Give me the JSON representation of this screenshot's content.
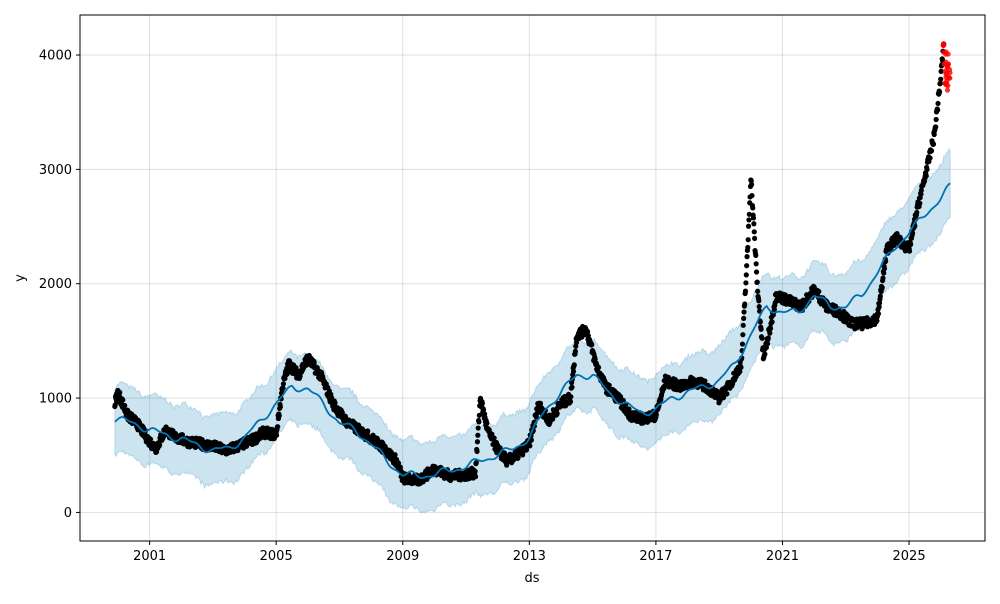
{
  "chart_data": {
    "type": "scatter",
    "title": "",
    "xlabel": "ds",
    "ylabel": "y",
    "xlim": [
      1998.8,
      2027.4
    ],
    "ylim": [
      -250,
      4350
    ],
    "grid": true,
    "xticks": [
      2001,
      2005,
      2009,
      2013,
      2017,
      2021,
      2025
    ],
    "yticks": [
      0,
      1000,
      2000,
      3000,
      4000
    ],
    "colors": {
      "observed": "#000000",
      "test": "#ff0000",
      "forecast": "#0072B2",
      "interval": "#0072B2"
    },
    "observed": [
      [
        1999.9,
        950
      ],
      [
        2000.0,
        1050
      ],
      [
        2000.3,
        850
      ],
      [
        2000.6,
        780
      ],
      [
        2001.0,
        620
      ],
      [
        2001.2,
        560
      ],
      [
        2001.5,
        720
      ],
      [
        2001.8,
        660
      ],
      [
        2002.2,
        620
      ],
      [
        2002.6,
        600
      ],
      [
        2003.0,
        580
      ],
      [
        2003.4,
        540
      ],
      [
        2003.8,
        580
      ],
      [
        2004.3,
        640
      ],
      [
        2004.6,
        700
      ],
      [
        2005.0,
        680
      ],
      [
        2005.2,
        1100
      ],
      [
        2005.4,
        1300
      ],
      [
        2005.7,
        1200
      ],
      [
        2006.0,
        1350
      ],
      [
        2006.4,
        1200
      ],
      [
        2006.8,
        950
      ],
      [
        2007.2,
        800
      ],
      [
        2007.6,
        720
      ],
      [
        2008.0,
        650
      ],
      [
        2008.4,
        560
      ],
      [
        2008.8,
        450
      ],
      [
        2009.0,
        300
      ],
      [
        2009.5,
        280
      ],
      [
        2010.0,
        380
      ],
      [
        2010.5,
        320
      ],
      [
        2011.0,
        330
      ],
      [
        2011.3,
        350
      ],
      [
        2011.45,
        1000
      ],
      [
        2011.7,
        700
      ],
      [
        2012.0,
        550
      ],
      [
        2012.3,
        450
      ],
      [
        2012.6,
        500
      ],
      [
        2013.0,
        600
      ],
      [
        2013.3,
        950
      ],
      [
        2013.6,
        800
      ],
      [
        2014.0,
        950
      ],
      [
        2014.3,
        1000
      ],
      [
        2014.5,
        1550
      ],
      [
        2014.8,
        1600
      ],
      [
        2015.1,
        1300
      ],
      [
        2015.4,
        1100
      ],
      [
        2015.8,
        1000
      ],
      [
        2016.2,
        850
      ],
      [
        2016.6,
        820
      ],
      [
        2017.0,
        850
      ],
      [
        2017.3,
        1150
      ],
      [
        2017.8,
        1100
      ],
      [
        2018.2,
        1150
      ],
      [
        2018.6,
        1100
      ],
      [
        2019.0,
        1000
      ],
      [
        2019.3,
        1100
      ],
      [
        2019.5,
        1200
      ],
      [
        2019.7,
        1300
      ],
      [
        2019.9,
        2300
      ],
      [
        2020.0,
        2950
      ],
      [
        2020.2,
        2000
      ],
      [
        2020.4,
        1350
      ],
      [
        2020.6,
        1600
      ],
      [
        2020.8,
        1900
      ],
      [
        2021.2,
        1850
      ],
      [
        2021.6,
        1800
      ],
      [
        2022.0,
        1950
      ],
      [
        2022.4,
        1800
      ],
      [
        2022.8,
        1750
      ],
      [
        2023.2,
        1650
      ],
      [
        2023.6,
        1650
      ],
      [
        2024.0,
        1700
      ],
      [
        2024.3,
        2300
      ],
      [
        2024.6,
        2400
      ],
      [
        2025.0,
        2300
      ],
      [
        2025.3,
        2700
      ],
      [
        2025.6,
        3050
      ],
      [
        2025.8,
        3300
      ],
      [
        2026.0,
        3800
      ],
      [
        2026.1,
        4100
      ]
    ],
    "test": [
      [
        2026.12,
        4050
      ],
      [
        2026.15,
        3900
      ],
      [
        2026.18,
        3800
      ],
      [
        2026.2,
        3950
      ],
      [
        2026.22,
        3750
      ],
      [
        2026.25,
        3850
      ]
    ],
    "forecast": [
      [
        1999.9,
        820
      ],
      [
        2000.5,
        780
      ],
      [
        2001,
        720
      ],
      [
        2002,
        640
      ],
      [
        2003,
        540
      ],
      [
        2003.5,
        560
      ],
      [
        2004,
        650
      ],
      [
        2004.5,
        800
      ],
      [
        2005,
        950
      ],
      [
        2005.5,
        1100
      ],
      [
        2006,
        1080
      ],
      [
        2006.5,
        950
      ],
      [
        2007,
        780
      ],
      [
        2007.5,
        720
      ],
      [
        2008,
        600
      ],
      [
        2008.5,
        450
      ],
      [
        2009,
        330
      ],
      [
        2009.5,
        320
      ],
      [
        2010,
        330
      ],
      [
        2010.5,
        370
      ],
      [
        2011,
        400
      ],
      [
        2011.5,
        460
      ],
      [
        2012,
        500
      ],
      [
        2012.5,
        560
      ],
      [
        2013,
        650
      ],
      [
        2013.5,
        900
      ],
      [
        2014,
        1050
      ],
      [
        2014.5,
        1200
      ],
      [
        2015,
        1200
      ],
      [
        2015.5,
        1050
      ],
      [
        2016,
        950
      ],
      [
        2016.5,
        870
      ],
      [
        2017,
        900
      ],
      [
        2017.5,
        1000
      ],
      [
        2018,
        1050
      ],
      [
        2018.5,
        1100
      ],
      [
        2019,
        1150
      ],
      [
        2019.5,
        1300
      ],
      [
        2020,
        1550
      ],
      [
        2020.5,
        1800
      ],
      [
        2021,
        1750
      ],
      [
        2021.5,
        1750
      ],
      [
        2022,
        1900
      ],
      [
        2022.5,
        1800
      ],
      [
        2023,
        1800
      ],
      [
        2023.5,
        1900
      ],
      [
        2024,
        2100
      ],
      [
        2024.5,
        2300
      ],
      [
        2025,
        2450
      ],
      [
        2025.5,
        2600
      ],
      [
        2026,
        2750
      ],
      [
        2026.3,
        2850
      ]
    ],
    "interval_halfwidth": 300
  }
}
